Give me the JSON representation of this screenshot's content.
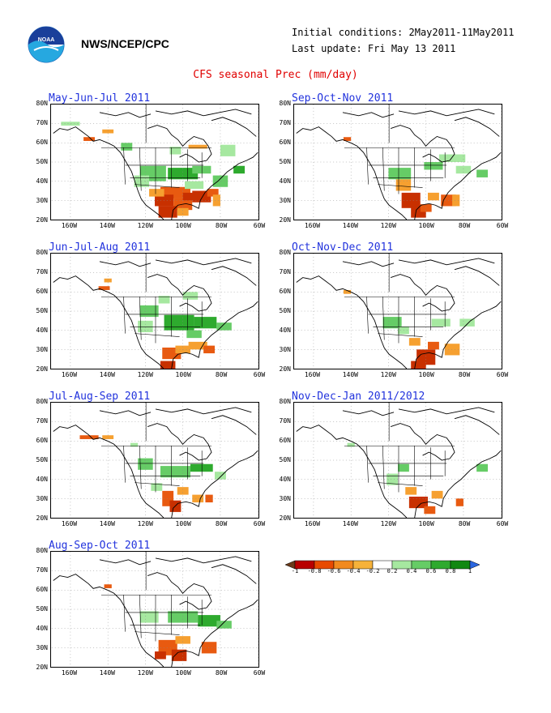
{
  "header": {
    "org": "NWS/NCEP/CPC",
    "initial_conditions": "Initial conditions: 2May2011-11May2011",
    "last_update": "Last update: Fri May 13 2011",
    "title": "CFS seasonal Prec (mm/day)"
  },
  "axes": {
    "lat_labels": [
      "80N",
      "70N",
      "60N",
      "50N",
      "40N",
      "30N",
      "20N"
    ],
    "lon_labels": [
      "160W",
      "140W",
      "120W",
      "100W",
      "80W",
      "60W"
    ]
  },
  "panels": [
    {
      "title": "May-Jun-Jul 2011"
    },
    {
      "title": "Sep-Oct-Nov 2011"
    },
    {
      "title": "Jun-Jul-Aug 2011"
    },
    {
      "title": "Oct-Nov-Dec 2011"
    },
    {
      "title": "Jul-Aug-Sep 2011"
    },
    {
      "title": "Nov-Dec-Jan 2011/2012"
    },
    {
      "title": "Aug-Sep-Oct 2011"
    }
  ],
  "colorbar": {
    "labels": [
      "-1",
      "-0.8",
      "-0.6",
      "-0.4",
      "-0.2",
      "0.2",
      "0.4",
      "0.6",
      "0.8",
      "1"
    ],
    "colors": [
      "#6b3a1a",
      "#b80000",
      "#e84a00",
      "#f28a1e",
      "#f6b23a",
      "#ffffff",
      "#a6e8a0",
      "#66cc66",
      "#2eaa2e",
      "#118811",
      "#2a66e0"
    ]
  },
  "legend_colors": {
    "strong_dry": "#c83000",
    "dry": "#e85a10",
    "weak_dry": "#f6a030",
    "weak_wet": "#a6e8a0",
    "wet": "#66cc66",
    "strong_wet": "#2eaa2e",
    "title_blue": "#2233dd",
    "title_red": "#e00000"
  }
}
